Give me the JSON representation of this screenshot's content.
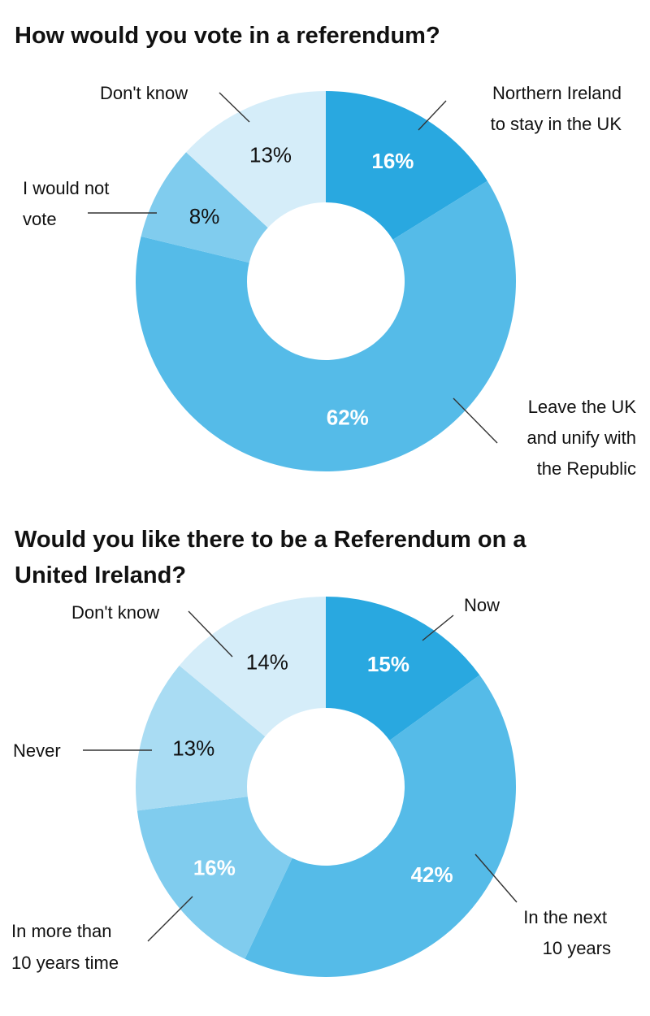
{
  "chart_data": [
    {
      "type": "pie",
      "title": "How would you vote in a referendum?",
      "slices": [
        {
          "label": [
            "Northern Ireland",
            "to stay in the UK"
          ],
          "value": 16,
          "value_label": "16%",
          "color": "#29a8e0",
          "text_color": "light"
        },
        {
          "label": [
            "Leave the UK",
            "and unify with",
            "the Republic"
          ],
          "value": 62,
          "value_label": "62%",
          "color": "#55bbe8",
          "text_color": "light"
        },
        {
          "label": [
            "I would not",
            "vote"
          ],
          "value": 8,
          "value_label": "8%",
          "color": "#80ccee",
          "text_color": "dark"
        },
        {
          "label": [
            "Don't know"
          ],
          "value": 13,
          "value_label": "13%",
          "color": "#d5edf9",
          "text_color": "dark"
        }
      ]
    },
    {
      "type": "pie",
      "title": "Would you like there to be a Referendum on a United Ireland?",
      "slices": [
        {
          "label": [
            "Now"
          ],
          "value": 15,
          "value_label": "15%",
          "color": "#29a8e0",
          "text_color": "light"
        },
        {
          "label": [
            "In the next",
            "10 years"
          ],
          "value": 42,
          "value_label": "42%",
          "color": "#55bbe8",
          "text_color": "light"
        },
        {
          "label": [
            "In more than",
            "10 years time"
          ],
          "value": 16,
          "value_label": "16%",
          "color": "#80ccee",
          "text_color": "light"
        },
        {
          "label": [
            "Never"
          ],
          "value": 13,
          "value_label": "13%",
          "color": "#a9dcf3",
          "text_color": "dark"
        },
        {
          "label": [
            "Don't know"
          ],
          "value": 14,
          "value_label": "14%",
          "color": "#d5edf9",
          "text_color": "dark"
        }
      ]
    }
  ]
}
